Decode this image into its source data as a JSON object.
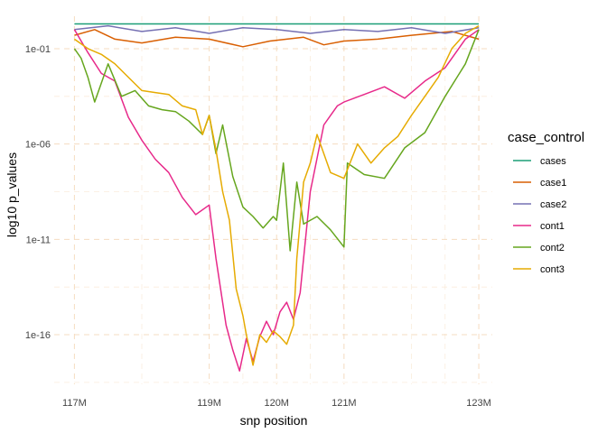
{
  "chart_data": {
    "type": "line",
    "title": "",
    "xlabel": "snp position",
    "ylabel": "log10 p_values",
    "y_scale": "log10",
    "xlim": [
      116.7,
      123.2
    ],
    "ylim_log10": [
      -18.6,
      0.7
    ],
    "x_ticks": [
      117,
      119,
      120,
      121,
      123
    ],
    "x_tick_labels": [
      "117M",
      "119M",
      "120M",
      "121M",
      "123M"
    ],
    "x_minor_ticks": [
      118,
      119.5,
      120.5,
      122,
      122.5
    ],
    "y_ticks_log10": [
      -1,
      -6,
      -11,
      -16
    ],
    "y_tick_labels": [
      "1e-01",
      "1e-06",
      "1e-11",
      "1e-16"
    ],
    "y_minor_ticks_log10": [
      -3.5,
      -8.5,
      -13.5,
      -18.5
    ],
    "grid": true,
    "legend": {
      "title": "case_control",
      "placement": "right"
    },
    "series": [
      {
        "name": "cases",
        "color": "#1b9e77",
        "x": [
          117.0,
          118.0,
          119.0,
          120.0,
          121.0,
          122.0,
          123.0
        ],
        "log10_y": [
          0.3,
          0.3,
          0.3,
          0.3,
          0.3,
          0.3,
          0.3
        ]
      },
      {
        "name": "case1",
        "color": "#d95f02",
        "x": [
          117.0,
          117.3,
          117.6,
          118.0,
          118.5,
          119.0,
          119.5,
          119.9,
          120.4,
          120.7,
          121.0,
          121.5,
          122.0,
          122.6,
          123.0
        ],
        "log10_y": [
          -0.3,
          0.0,
          -0.5,
          -0.7,
          -0.4,
          -0.5,
          -0.9,
          -0.6,
          -0.4,
          -0.8,
          -0.6,
          -0.5,
          -0.3,
          -0.1,
          -0.5
        ]
      },
      {
        "name": "case2",
        "color": "#7570b3",
        "x": [
          117.0,
          117.5,
          118.0,
          118.5,
          119.0,
          119.5,
          120.0,
          120.5,
          121.0,
          121.5,
          122.0,
          122.5,
          123.0
        ],
        "log10_y": [
          0.0,
          0.2,
          -0.1,
          0.1,
          -0.2,
          0.1,
          0.0,
          -0.2,
          0.0,
          -0.1,
          0.1,
          -0.2,
          0.1
        ]
      },
      {
        "name": "cont1",
        "color": "#e7298a",
        "x": [
          117.0,
          117.2,
          117.4,
          117.6,
          117.8,
          118.0,
          118.2,
          118.4,
          118.6,
          118.8,
          119.0,
          119.1,
          119.25,
          119.35,
          119.45,
          119.55,
          119.65,
          119.75,
          119.85,
          119.95,
          120.05,
          120.15,
          120.25,
          120.35,
          120.5,
          120.7,
          120.9,
          121.0,
          121.3,
          121.6,
          121.9,
          122.2,
          122.5,
          122.8,
          123.0
        ],
        "log10_y": [
          0.0,
          -1.2,
          -2.3,
          -2.7,
          -4.6,
          -5.8,
          -6.8,
          -7.5,
          -8.8,
          -9.7,
          -9.2,
          -12.0,
          -15.5,
          -16.8,
          -17.9,
          -16.2,
          -17.4,
          -16.1,
          -15.3,
          -16.0,
          -14.8,
          -14.3,
          -15.2,
          -13.8,
          -8.5,
          -5.0,
          -4.0,
          -3.8,
          -3.4,
          -3.0,
          -3.6,
          -2.7,
          -2.0,
          -0.5,
          0.0
        ]
      },
      {
        "name": "cont2",
        "color": "#66a61e",
        "x": [
          117.0,
          117.1,
          117.2,
          117.3,
          117.5,
          117.7,
          117.9,
          118.1,
          118.3,
          118.5,
          118.7,
          118.9,
          119.0,
          119.1,
          119.2,
          119.35,
          119.5,
          119.65,
          119.8,
          119.95,
          120.0,
          120.1,
          120.2,
          120.3,
          120.4,
          120.6,
          120.8,
          121.0,
          121.05,
          121.3,
          121.6,
          121.9,
          122.2,
          122.5,
          122.8,
          123.0
        ],
        "log10_y": [
          -1.0,
          -1.5,
          -2.5,
          -3.8,
          -1.8,
          -3.5,
          -3.2,
          -4.0,
          -4.2,
          -4.3,
          -4.8,
          -5.5,
          -4.5,
          -6.5,
          -5.0,
          -7.7,
          -9.3,
          -9.8,
          -10.4,
          -9.8,
          -10.0,
          -7.0,
          -11.6,
          -8.0,
          -10.2,
          -9.8,
          -10.5,
          -11.4,
          -7.0,
          -7.6,
          -7.8,
          -6.2,
          -5.4,
          -3.5,
          -1.8,
          0.0
        ]
      },
      {
        "name": "cont3",
        "color": "#e6ab02",
        "x": [
          117.0,
          117.2,
          117.4,
          117.6,
          117.8,
          118.0,
          118.2,
          118.4,
          118.6,
          118.8,
          118.9,
          119.0,
          119.1,
          119.2,
          119.3,
          119.4,
          119.5,
          119.55,
          119.65,
          119.75,
          119.85,
          119.95,
          120.05,
          120.15,
          120.25,
          120.3,
          120.4,
          120.5,
          120.6,
          120.8,
          121.0,
          121.2,
          121.4,
          121.6,
          121.8,
          122.0,
          122.2,
          122.4,
          122.6,
          122.8,
          123.0
        ],
        "log10_y": [
          -0.5,
          -1.0,
          -1.3,
          -1.8,
          -2.5,
          -3.2,
          -3.3,
          -3.4,
          -4.0,
          -4.2,
          -5.5,
          -4.5,
          -6.3,
          -8.5,
          -10.0,
          -13.6,
          -15.0,
          -16.0,
          -17.6,
          -16.0,
          -16.4,
          -15.8,
          -16.1,
          -16.5,
          -15.5,
          -12.0,
          -8.0,
          -7.0,
          -5.5,
          -7.5,
          -7.8,
          -6.0,
          -7.0,
          -6.2,
          -5.6,
          -4.5,
          -3.5,
          -2.5,
          -1.0,
          -0.2,
          0.2
        ]
      }
    ]
  }
}
